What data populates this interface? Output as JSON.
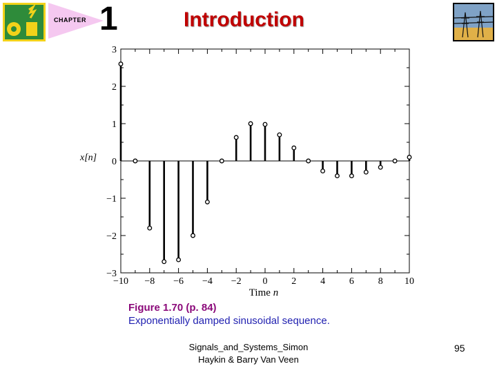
{
  "header": {
    "chapter_label": "CHAPTER",
    "chapter_number": "1",
    "title": "Introduction"
  },
  "chart_data": {
    "type": "stem",
    "xlabel_prefix": "Time ",
    "xlabel_var": "n",
    "ylabel": "x[n]",
    "xlim": [
      -10,
      10
    ],
    "ylim": [
      -3,
      3
    ],
    "xticks": [
      -10,
      -8,
      -6,
      -4,
      -2,
      0,
      2,
      4,
      6,
      8,
      10
    ],
    "xtick_labels": [
      "−10",
      "−8",
      "−6",
      "−4",
      "−2",
      "0",
      "2",
      "4",
      "6",
      "8",
      "10"
    ],
    "yticks": [
      3,
      2,
      1,
      0,
      -1,
      -2,
      -3
    ],
    "ytick_labels": [
      "3",
      "2",
      "1",
      "0",
      "−1",
      "−2",
      "−3"
    ],
    "x": [
      -10,
      -9,
      -8,
      -7,
      -6,
      -5,
      -4,
      -3,
      -2,
      -1,
      0,
      1,
      2,
      3,
      4,
      5,
      6,
      7,
      8,
      9,
      10
    ],
    "values": [
      2.6,
      0,
      -1.8,
      -2.7,
      -2.65,
      -2.0,
      -1.1,
      0,
      0.63,
      1.0,
      0.98,
      0.7,
      0.35,
      0,
      -0.27,
      -0.4,
      -0.4,
      -0.3,
      -0.17,
      0,
      0.1
    ]
  },
  "caption": {
    "figure_label": "Figure 1.70  (p. 84)",
    "description": "Exponentially damped sinusoidal sequence."
  },
  "footer": {
    "line1": "Signals_and_Systems_Simon",
    "line2": "Haykin & Barry Van Veen",
    "page_number": "95"
  },
  "colors": {
    "title": "#c00000",
    "caption_figure": "#8b0a7a",
    "caption_text": "#1f1fb0",
    "logo_green": "#2e8b3a",
    "logo_yellow": "#f2d21a",
    "chapter_triangle": "#f5c8f0"
  }
}
